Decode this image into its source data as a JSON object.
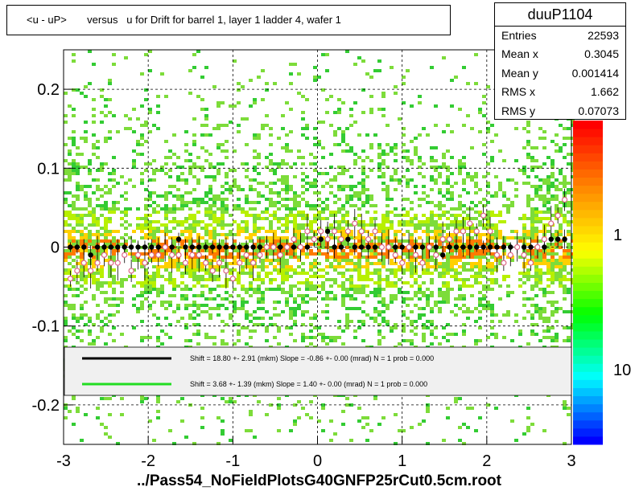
{
  "title": "<u - uP>       versus   u for Drift for barrel 1, layer 1 ladder 4, wafer 1",
  "stats": {
    "name": "duuP1104",
    "rows": [
      {
        "label": "Entries",
        "value": "22593"
      },
      {
        "label": "Mean x",
        "value": "0.3045"
      },
      {
        "label": "Mean y",
        "value": "0.001414"
      },
      {
        "label": "RMS x",
        "value": "1.662"
      },
      {
        "label": "RMS y",
        "value": "0.07073"
      }
    ]
  },
  "footer": "../Pass54_NoFieldPlotsG40GNFP25rCut0.5cm.root",
  "legend": [
    {
      "color": "#000000",
      "text": "Shift =    18.80 +- 2.91 (mkm) Slope =    -0.86 +- 0.00 (mrad)  N = 1 prob = 0.000"
    },
    {
      "color": "#22dd22",
      "text": "Shift =    3.68 +- 1.39 (mkm) Slope =    1.40 +- 0.00 (mrad)  N = 1 prob = 0.000"
    }
  ],
  "palette": [
    "#0000ff",
    "#00ffff",
    "#00ff00",
    "#ffff00",
    "#ff8800",
    "#ff0000"
  ],
  "chart_data": {
    "type": "scatter",
    "xlim": [
      -3,
      3
    ],
    "ylim": [
      -0.25,
      0.25
    ],
    "x_ticks": [
      "-3",
      "-2",
      "-1",
      "0",
      "1",
      "2",
      "3"
    ],
    "y_ticks": [
      "-0.2",
      "-0.1",
      "0",
      "0.1",
      "0.2"
    ],
    "z_ticks": [
      "1",
      "10"
    ],
    "z_label_top": "0",
    "grid": true,
    "series": [
      {
        "marker": "black-filled",
        "x": [
          -2.92,
          -2.84,
          -2.76,
          -2.68,
          -2.6,
          -2.52,
          -2.44,
          -2.36,
          -2.28,
          -2.2,
          -2.12,
          -2.04,
          -1.96,
          -1.88,
          -1.8,
          -1.72,
          -1.64,
          -1.56,
          -1.48,
          -1.4,
          -1.32,
          -1.24,
          -1.16,
          -1.08,
          -1.0,
          -0.92,
          -0.84,
          -0.76,
          -0.68,
          -0.6,
          -0.52,
          -0.44,
          -0.36,
          -0.28,
          -0.2,
          -0.12,
          -0.04,
          0.04,
          0.12,
          0.2,
          0.28,
          0.36,
          0.44,
          0.52,
          0.6,
          0.68,
          0.76,
          0.84,
          0.92,
          1.0,
          1.08,
          1.16,
          1.24,
          1.32,
          1.4,
          1.48,
          1.56,
          1.64,
          1.72,
          1.8,
          1.88,
          1.96,
          2.04,
          2.12,
          2.2,
          2.28,
          2.36,
          2.44,
          2.52,
          2.6,
          2.68,
          2.76,
          2.84,
          2.92
        ],
        "y": [
          0.0,
          0.0,
          0.0,
          -0.01,
          0.0,
          0.0,
          0.0,
          0.0,
          0.0,
          0.0,
          0.0,
          0.0,
          0.0,
          0.0,
          0.0,
          0.0,
          0.01,
          0.0,
          0.0,
          0.0,
          0.0,
          0.0,
          0.0,
          0.0,
          0.0,
          0.0,
          0.0,
          0.0,
          0.0,
          0.0,
          0.0,
          0.0,
          0.0,
          0.0,
          0.0,
          0.0,
          0.01,
          0.01,
          0.02,
          0.0,
          0.0,
          0.01,
          0.0,
          0.0,
          0.0,
          0.0,
          0.0,
          0.0,
          0.0,
          0.0,
          0.0,
          0.0,
          0.0,
          0.0,
          0.0,
          -0.01,
          0.0,
          0.0,
          0.0,
          0.0,
          0.0,
          0.0,
          0.0,
          0.0,
          0.0,
          0.0,
          0.0,
          0.0,
          0.0,
          0.0,
          0.0,
          0.01,
          0.01,
          0.01
        ]
      },
      {
        "marker": "pink-open",
        "x": [
          -2.92,
          -2.84,
          -2.76,
          -2.68,
          -2.6,
          -2.52,
          -2.44,
          -2.36,
          -2.28,
          -2.2,
          -2.12,
          -2.04,
          -1.96,
          -1.88,
          -1.8,
          -1.72,
          -1.64,
          -1.56,
          -1.48,
          -1.4,
          -1.32,
          -1.24,
          -1.16,
          -1.08,
          -1.0,
          -0.92,
          -0.84,
          -0.76,
          -0.68,
          -0.6,
          -0.52,
          -0.44,
          -0.36,
          -0.28,
          -0.2,
          -0.12,
          -0.04,
          0.04,
          0.12,
          0.2,
          0.28,
          0.36,
          0.44,
          0.52,
          0.6,
          0.68,
          0.76,
          0.84,
          0.92,
          1.0,
          1.08,
          1.16,
          1.24,
          1.32,
          1.4,
          1.48,
          1.56,
          1.64,
          1.72,
          1.8,
          1.88,
          1.96,
          2.04,
          2.12,
          2.2,
          2.28,
          2.36,
          2.44,
          2.52,
          2.6,
          2.68,
          2.76,
          2.84,
          2.92
        ],
        "y": [
          -0.04,
          -0.03,
          -0.02,
          -0.03,
          -0.02,
          -0.01,
          -0.02,
          -0.02,
          -0.01,
          -0.03,
          -0.01,
          -0.02,
          -0.01,
          -0.01,
          0.0,
          -0.01,
          -0.01,
          -0.02,
          -0.01,
          -0.01,
          -0.02,
          -0.03,
          -0.02,
          -0.03,
          -0.04,
          -0.02,
          -0.01,
          -0.02,
          -0.01,
          0.0,
          0.0,
          -0.01,
          0.0,
          0.01,
          0.0,
          0.02,
          0.01,
          0.02,
          0.01,
          0.02,
          0.01,
          0.02,
          0.03,
          0.02,
          0.01,
          0.02,
          0.0,
          0.0,
          -0.01,
          -0.02,
          0.0,
          -0.01,
          -0.02,
          0.0,
          -0.01,
          0.01,
          0.01,
          0.02,
          0.02,
          0.03,
          0.02,
          0.04,
          0.02,
          -0.01,
          -0.02,
          -0.01,
          0.0,
          -0.01,
          -0.02,
          0.0,
          0.01,
          0.03,
          0.04,
          0.06
        ]
      }
    ]
  }
}
